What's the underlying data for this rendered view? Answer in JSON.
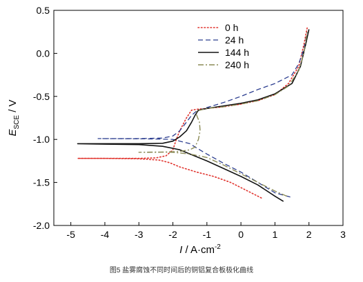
{
  "caption": "图5   盐雾腐蚀不同时间后的铜铝复合板极化曲线",
  "chart_data": {
    "type": "line",
    "xlabel": {
      "italic": "I",
      "text": " / A·cm",
      "sup": "-2"
    },
    "ylabel": {
      "italic": "E",
      "sub": "SCE",
      "text": " / V"
    },
    "xlim": [
      -5.5,
      3
    ],
    "ylim": [
      -2.0,
      0.5
    ],
    "xticks": [
      -5,
      -4,
      -3,
      -2,
      -1,
      0,
      1,
      2,
      3
    ],
    "yticks": [
      0.5,
      0.0,
      -0.5,
      -1.0,
      -1.5,
      -2.0
    ],
    "xtick_labels": [
      "-5",
      "-4",
      "-3",
      "-2",
      "-1",
      "0",
      "1",
      "2",
      "3"
    ],
    "ytick_labels": [
      "0.5",
      "0.0",
      "-0.5",
      "-1.0",
      "-1.5",
      "-2.0"
    ],
    "grid": false,
    "legend_position": "top-center",
    "series": [
      {
        "name": "0 h",
        "color": "#e0312b",
        "dash": "dotted",
        "points": [
          [
            0.6,
            -1.68
          ],
          [
            0.2,
            -1.6
          ],
          [
            -0.3,
            -1.5
          ],
          [
            -0.8,
            -1.43
          ],
          [
            -1.3,
            -1.38
          ],
          [
            -1.8,
            -1.32
          ],
          [
            -2.1,
            -1.27
          ],
          [
            -2.4,
            -1.24
          ],
          [
            -3.0,
            -1.225
          ],
          [
            -4.0,
            -1.22
          ],
          [
            -4.8,
            -1.22
          ],
          [
            -4.0,
            -1.22
          ],
          [
            -3.0,
            -1.22
          ],
          [
            -2.5,
            -1.215
          ],
          [
            -2.2,
            -1.19
          ],
          [
            -2.0,
            -1.12
          ],
          [
            -1.9,
            -1.0
          ],
          [
            -1.8,
            -0.9
          ],
          [
            -1.6,
            -0.75
          ],
          [
            -1.45,
            -0.66
          ],
          [
            -1.3,
            -0.65
          ],
          [
            -1.0,
            -0.64
          ],
          [
            -0.5,
            -0.62
          ],
          [
            0.0,
            -0.59
          ],
          [
            0.5,
            -0.55
          ],
          [
            1.0,
            -0.48
          ],
          [
            1.4,
            -0.35
          ],
          [
            1.7,
            -0.15
          ],
          [
            1.85,
            0.1
          ],
          [
            1.95,
            0.3
          ]
        ]
      },
      {
        "name": "24 h",
        "color": "#2b3d8f",
        "dash": "dashed",
        "points": [
          [
            1.45,
            -1.67
          ],
          [
            1.0,
            -1.62
          ],
          [
            0.5,
            -1.5
          ],
          [
            0.0,
            -1.38
          ],
          [
            -0.5,
            -1.28
          ],
          [
            -1.0,
            -1.17
          ],
          [
            -1.3,
            -1.1
          ],
          [
            -1.5,
            -1.05
          ],
          [
            -2.0,
            -1.0
          ],
          [
            -2.5,
            -0.995
          ],
          [
            -3.0,
            -0.993
          ],
          [
            -4.2,
            -0.99
          ],
          [
            -3.0,
            -0.99
          ],
          [
            -2.3,
            -0.985
          ],
          [
            -2.0,
            -0.96
          ],
          [
            -1.8,
            -0.9
          ],
          [
            -1.6,
            -0.8
          ],
          [
            -1.45,
            -0.72
          ],
          [
            -1.3,
            -0.67
          ],
          [
            -1.0,
            -0.63
          ],
          [
            -0.5,
            -0.57
          ],
          [
            0.0,
            -0.5
          ],
          [
            0.5,
            -0.42
          ],
          [
            1.0,
            -0.35
          ],
          [
            1.5,
            -0.25
          ],
          [
            1.7,
            -0.12
          ],
          [
            1.85,
            0.05
          ],
          [
            1.95,
            0.25
          ]
        ]
      },
      {
        "name": "144 h",
        "color": "#111111",
        "dash": "solid",
        "points": [
          [
            1.25,
            -1.72
          ],
          [
            1.0,
            -1.66
          ],
          [
            0.5,
            -1.53
          ],
          [
            0.0,
            -1.43
          ],
          [
            -0.5,
            -1.34
          ],
          [
            -1.0,
            -1.25
          ],
          [
            -1.5,
            -1.17
          ],
          [
            -1.8,
            -1.12
          ],
          [
            -2.3,
            -1.08
          ],
          [
            -3.0,
            -1.06
          ],
          [
            -4.0,
            -1.055
          ],
          [
            -4.8,
            -1.05
          ],
          [
            -4.0,
            -1.05
          ],
          [
            -3.0,
            -1.05
          ],
          [
            -2.3,
            -1.045
          ],
          [
            -2.0,
            -1.02
          ],
          [
            -1.8,
            -0.97
          ],
          [
            -1.6,
            -0.9
          ],
          [
            -1.45,
            -0.8
          ],
          [
            -1.35,
            -0.72
          ],
          [
            -1.25,
            -0.66
          ],
          [
            -1.0,
            -0.64
          ],
          [
            -0.5,
            -0.61
          ],
          [
            0.0,
            -0.58
          ],
          [
            0.5,
            -0.54
          ],
          [
            1.0,
            -0.47
          ],
          [
            1.5,
            -0.35
          ],
          [
            1.75,
            -0.15
          ],
          [
            1.9,
            0.1
          ],
          [
            2.0,
            0.28
          ]
        ]
      },
      {
        "name": "240 h",
        "color": "#8a8a55",
        "dash": "dashdot",
        "points": [
          [
            1.35,
            -1.66
          ],
          [
            1.0,
            -1.6
          ],
          [
            0.5,
            -1.5
          ],
          [
            0.0,
            -1.4
          ],
          [
            -0.5,
            -1.3
          ],
          [
            -1.0,
            -1.21
          ],
          [
            -1.5,
            -1.17
          ],
          [
            -2.0,
            -1.15
          ],
          [
            -2.5,
            -1.147
          ],
          [
            -3.0,
            -1.15
          ],
          [
            -2.5,
            -1.15
          ],
          [
            -1.8,
            -1.14
          ],
          [
            -1.5,
            -1.12
          ],
          [
            -1.35,
            -1.09
          ],
          [
            -1.25,
            -1.0
          ],
          [
            -1.2,
            -0.9
          ],
          [
            -1.22,
            -0.8
          ],
          [
            -1.3,
            -0.72
          ],
          [
            -1.3,
            -0.67
          ],
          [
            -1.0,
            -0.64
          ],
          [
            -0.5,
            -0.62
          ],
          [
            0.0,
            -0.59
          ],
          [
            0.5,
            -0.55
          ],
          [
            1.0,
            -0.48
          ],
          [
            1.4,
            -0.38
          ],
          [
            1.7,
            -0.2
          ],
          [
            1.85,
            0.0
          ],
          [
            1.95,
            0.25
          ]
        ]
      }
    ]
  }
}
